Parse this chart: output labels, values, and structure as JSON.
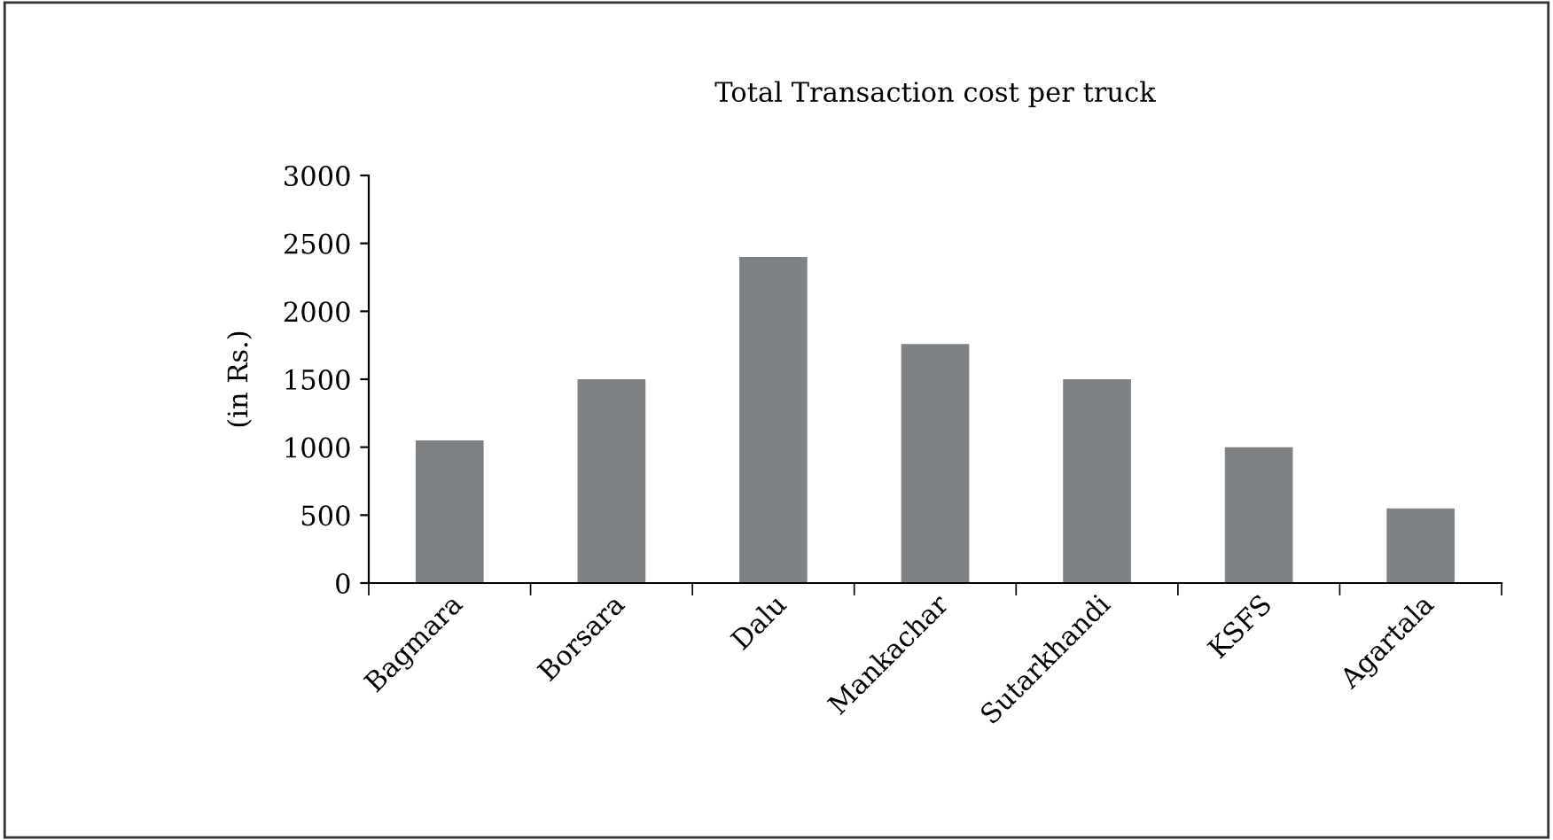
{
  "chart_data": {
    "type": "bar",
    "title": "Total Transaction cost per truck",
    "ylabel": "(in Rs.)",
    "categories": [
      "Bagmara",
      "Borsara",
      "Dalu",
      "Mankachar",
      "Sutarkhandi",
      "KSFS",
      "Agartala"
    ],
    "values": [
      1050,
      1500,
      2400,
      1760,
      1500,
      1000,
      550
    ],
    "color": "#7f8285",
    "ylim": [
      0,
      3000
    ],
    "yticks": [
      0,
      500,
      1000,
      1500,
      2000,
      2500,
      3000
    ],
    "grid": false
  }
}
